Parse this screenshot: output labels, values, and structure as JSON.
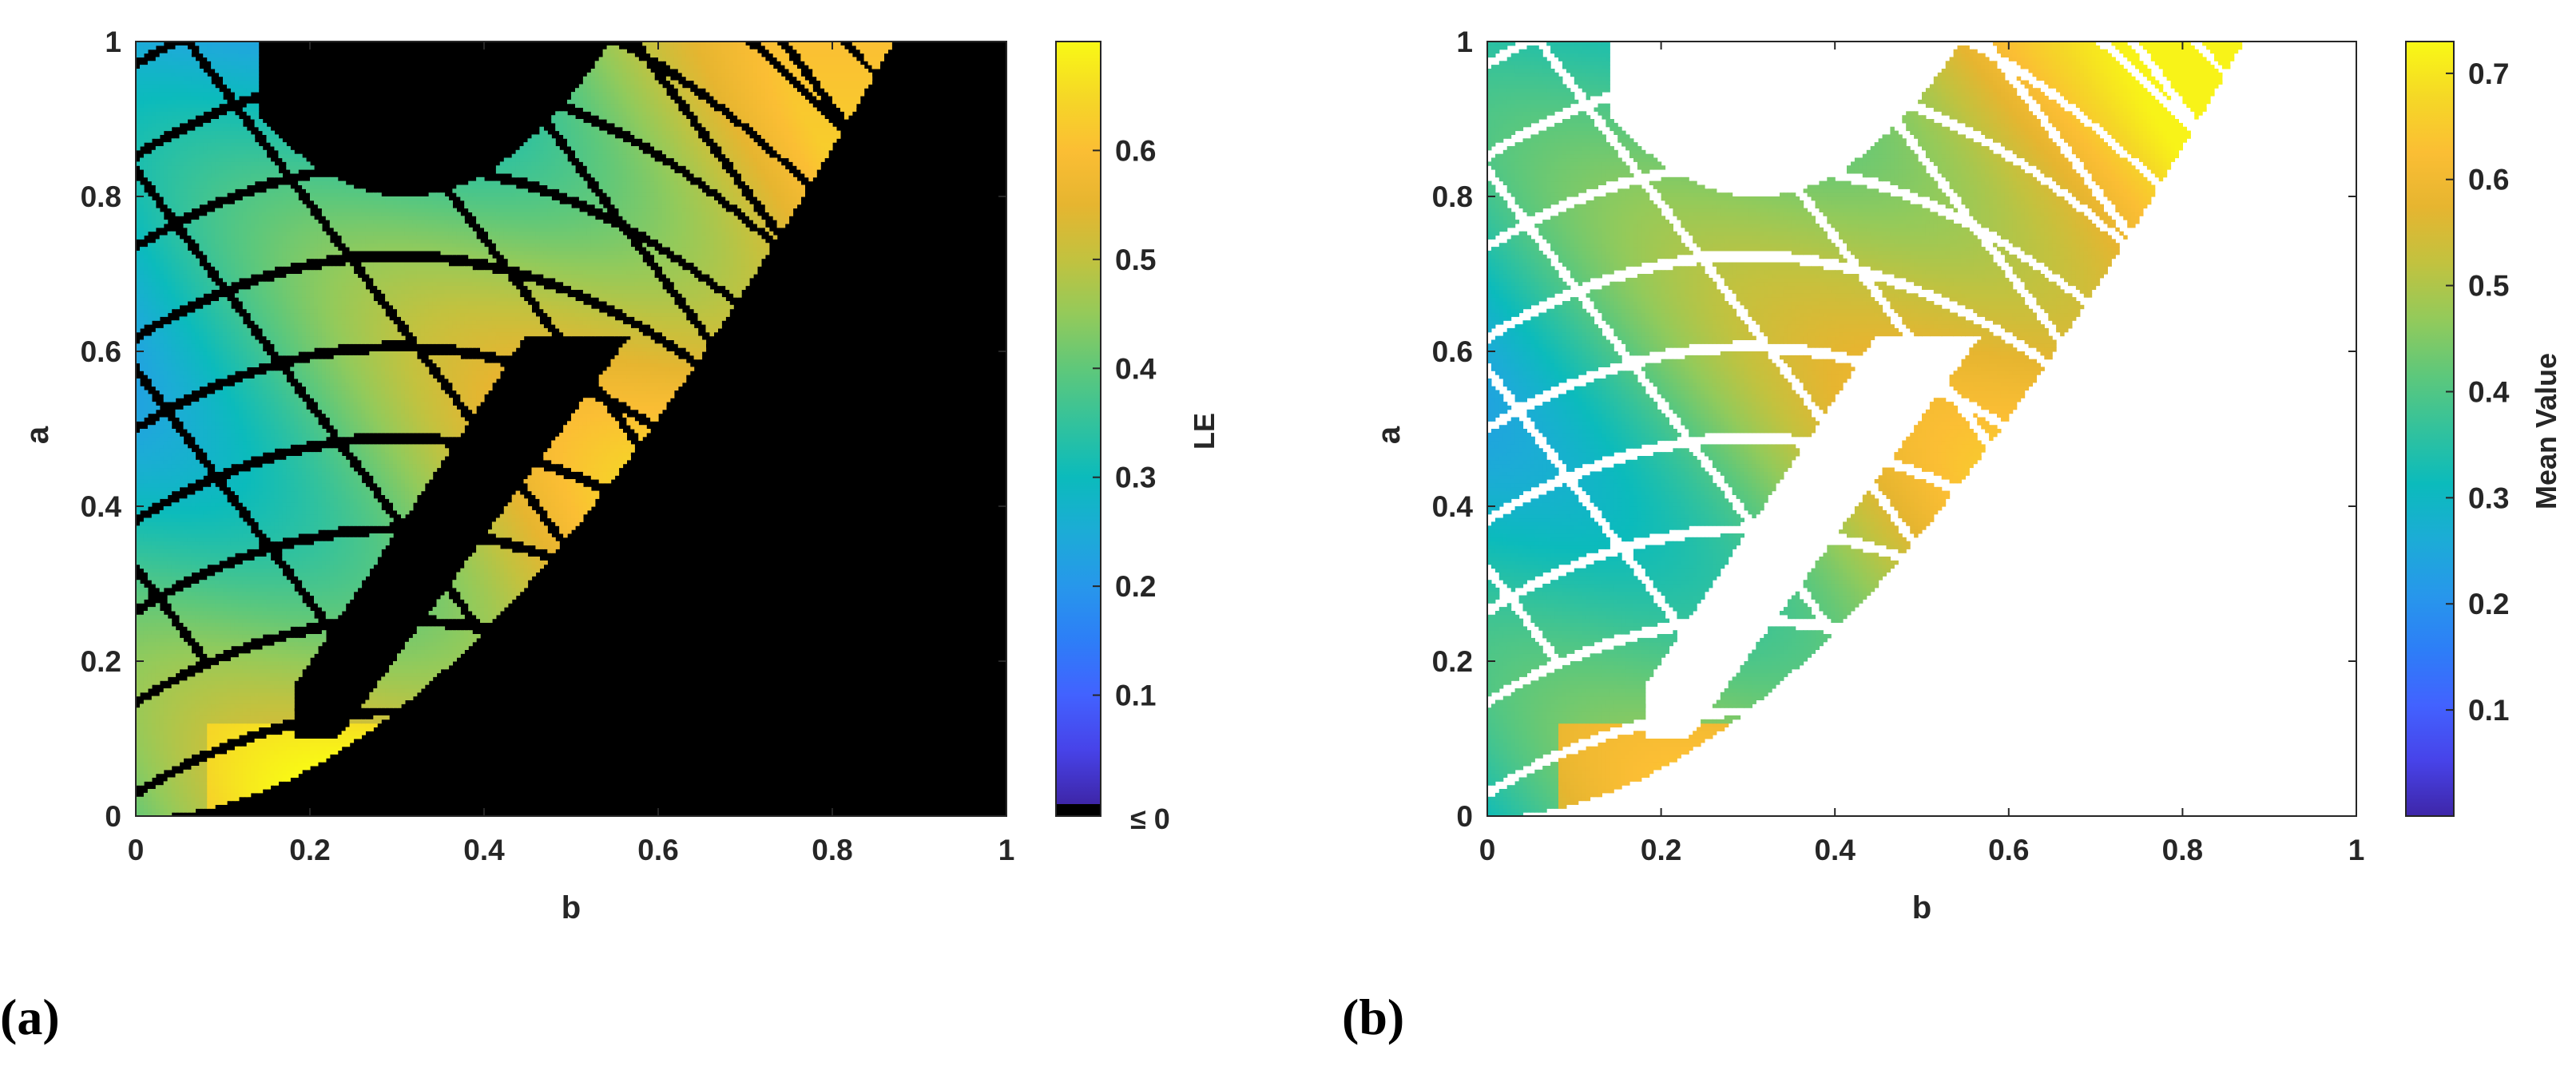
{
  "chart_data": [
    {
      "type": "heatmap",
      "panel_label": "(a)",
      "xlabel": "b",
      "ylabel": "a",
      "xlim": [
        0,
        1
      ],
      "ylim": [
        0,
        1
      ],
      "xticks": [
        "0",
        "0.2",
        "0.4",
        "0.6",
        "0.8",
        "1"
      ],
      "yticks": [
        "0",
        "0.2",
        "0.4",
        "0.6",
        "0.8",
        "1"
      ],
      "background": "#000000",
      "colorbar": {
        "label": "LE",
        "range": [
          0,
          0.7
        ],
        "ticks": [
          "0.1",
          "0.2",
          "0.3",
          "0.4",
          "0.5",
          "0.6"
        ],
        "extra_tick": "≤ 0",
        "extra_color": "#000000"
      },
      "description_region": "chaotic region bounded by a ≈ b^2-type curve; LE ranges 0 to 0.7, highest near b≈0.15, a≈0.05 and b≈0.7, a≈0.8"
    },
    {
      "type": "heatmap",
      "panel_label": "(b)",
      "xlabel": "b",
      "ylabel": "a",
      "xlim": [
        0,
        1
      ],
      "ylim": [
        0,
        1
      ],
      "xticks": [
        "0",
        "0.2",
        "0.4",
        "0.6",
        "0.8",
        "1"
      ],
      "yticks": [
        "0",
        "0.2",
        "0.4",
        "0.6",
        "0.8",
        "1"
      ],
      "background": "#ffffff",
      "colorbar": {
        "label": "Mean Value",
        "range": [
          0,
          0.73
        ],
        "ticks": [
          "0.1",
          "0.2",
          "0.3",
          "0.4",
          "0.5",
          "0.6",
          "0.7"
        ]
      }
    }
  ],
  "colormap": [
    "#3e26a8",
    "#4743e9",
    "#4262ff",
    "#2d7ef7",
    "#2797eb",
    "#1cacd6",
    "#0bbbbc",
    "#33c29c",
    "#5fc87a",
    "#94ca5a",
    "#c2c23f",
    "#e6b530",
    "#fbbe34",
    "#f5d826",
    "#f9f915"
  ]
}
